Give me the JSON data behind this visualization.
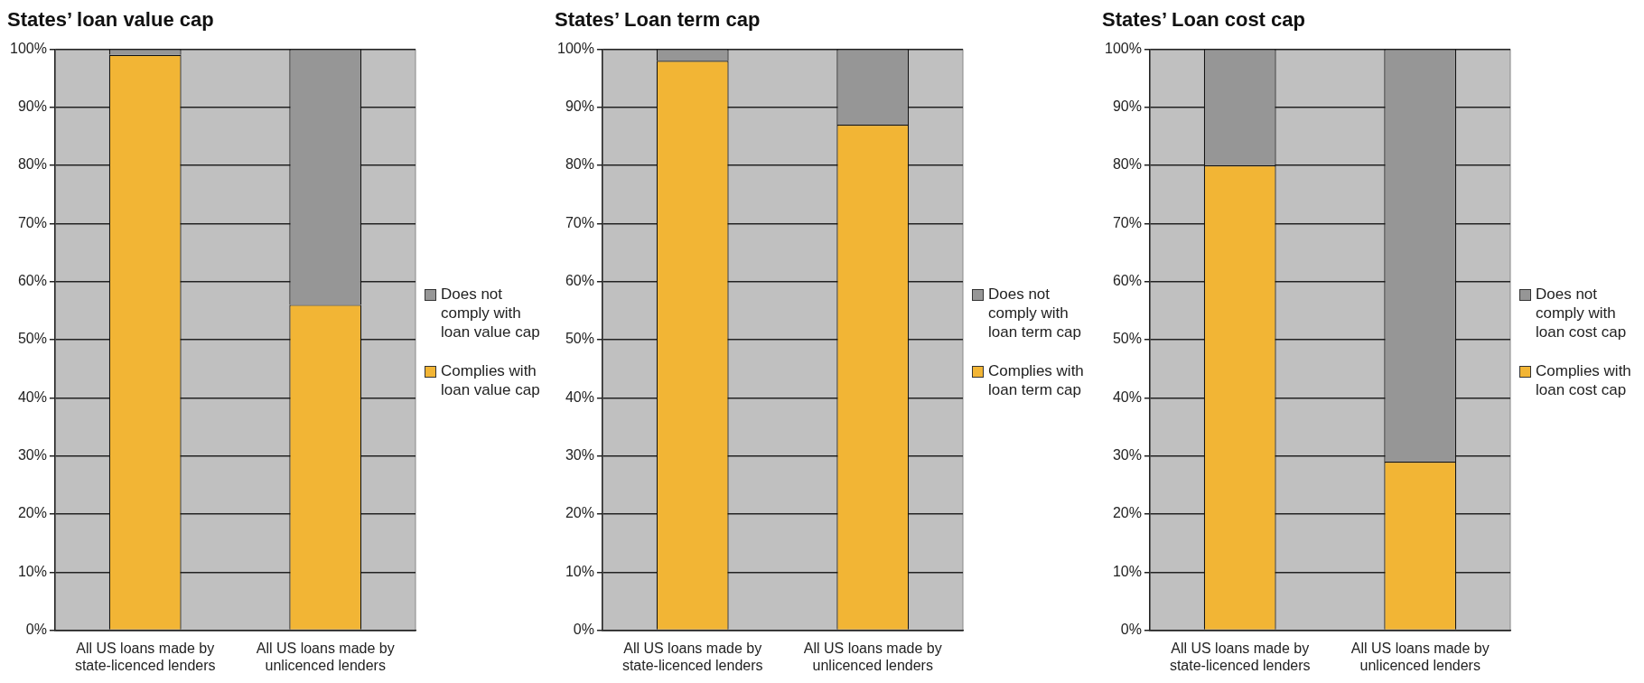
{
  "chart_data": [
    {
      "type": "bar",
      "title": "States’ loan value cap",
      "categories": [
        "All US loans made by state-licenced lenders",
        "All US loans made by unlicenced lenders"
      ],
      "stacked": true,
      "ylim": [
        0,
        100
      ],
      "yticks": [
        {
          "value": 0,
          "label": "0%"
        },
        {
          "value": 10,
          "label": "10%"
        },
        {
          "value": 20,
          "label": "20%"
        },
        {
          "value": 30,
          "label": "30%"
        },
        {
          "value": 40,
          "label": "40%"
        },
        {
          "value": 50,
          "label": "50%"
        },
        {
          "value": 60,
          "label": "60%"
        },
        {
          "value": 70,
          "label": "70%"
        },
        {
          "value": 80,
          "label": "80%"
        },
        {
          "value": 90,
          "label": "90%"
        },
        {
          "value": 100,
          "label": "100%"
        }
      ],
      "grid": "y",
      "legend": "right",
      "series": [
        {
          "name": "Complies with loan value cap",
          "color": "#f2b535",
          "values": [
            99,
            56
          ]
        },
        {
          "name": "Does not comply with loan value cap",
          "color": "#969696",
          "values": [
            1,
            44
          ]
        }
      ]
    },
    {
      "type": "bar",
      "title": "States’ Loan term cap",
      "categories": [
        "All US loans made by state-licenced lenders",
        "All US loans made by unlicenced lenders"
      ],
      "stacked": true,
      "ylim": [
        0,
        100
      ],
      "yticks": [
        {
          "value": 0,
          "label": "0%"
        },
        {
          "value": 10,
          "label": "10%"
        },
        {
          "value": 20,
          "label": "20%"
        },
        {
          "value": 30,
          "label": "30%"
        },
        {
          "value": 40,
          "label": "40%"
        },
        {
          "value": 50,
          "label": "50%"
        },
        {
          "value": 60,
          "label": "60%"
        },
        {
          "value": 70,
          "label": "70%"
        },
        {
          "value": 80,
          "label": "80%"
        },
        {
          "value": 90,
          "label": "90%"
        },
        {
          "value": 100,
          "label": "100%"
        }
      ],
      "grid": "y",
      "legend": "right",
      "series": [
        {
          "name": "Complies with loan term cap",
          "color": "#f2b535",
          "values": [
            98,
            87
          ]
        },
        {
          "name": "Does not comply with loan term cap",
          "color": "#969696",
          "values": [
            2,
            13
          ]
        }
      ]
    },
    {
      "type": "bar",
      "title": "States’ Loan cost cap",
      "categories": [
        "All US loans made by state-licenced lenders",
        "All US loans made by unlicenced lenders"
      ],
      "stacked": true,
      "ylim": [
        0,
        100
      ],
      "yticks": [
        {
          "value": 0,
          "label": "0%"
        },
        {
          "value": 10,
          "label": "10%"
        },
        {
          "value": 20,
          "label": "20%"
        },
        {
          "value": 30,
          "label": "30%"
        },
        {
          "value": 40,
          "label": "40%"
        },
        {
          "value": 50,
          "label": "50%"
        },
        {
          "value": 60,
          "label": "60%"
        },
        {
          "value": 70,
          "label": "70%"
        },
        {
          "value": 80,
          "label": "80%"
        },
        {
          "value": 90,
          "label": "90%"
        },
        {
          "value": 100,
          "label": "100%"
        }
      ],
      "grid": "y",
      "legend": "right",
      "series": [
        {
          "name": "Complies with loan cost cap",
          "color": "#f2b535",
          "values": [
            80,
            29
          ]
        },
        {
          "name": "Does not comply with loan cost cap",
          "color": "#969696",
          "values": [
            20,
            71
          ]
        }
      ]
    }
  ]
}
